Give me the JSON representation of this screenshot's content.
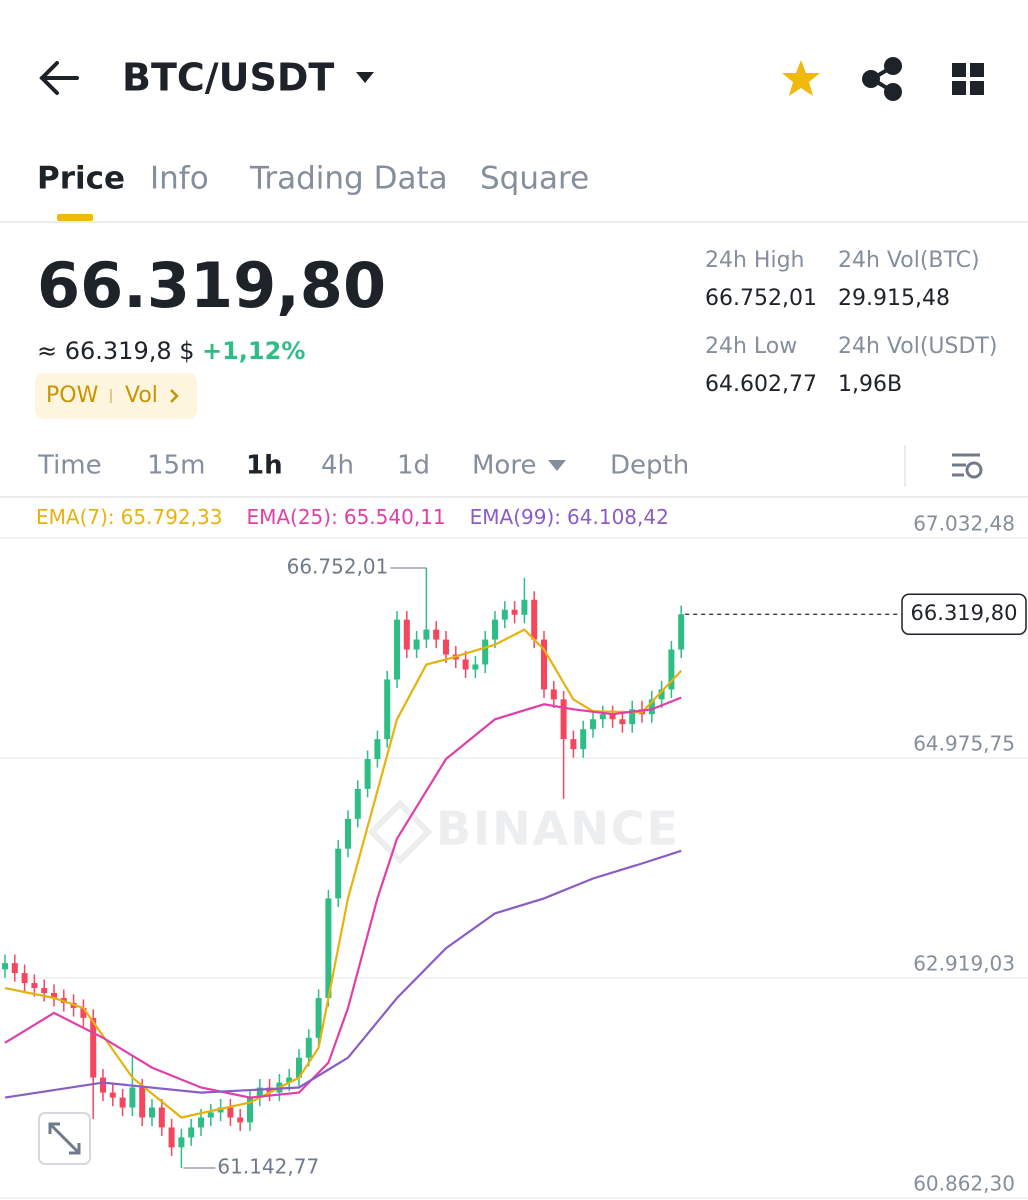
{
  "header": {
    "title": "BTC/USDT"
  },
  "tabs": [
    "Price",
    "Info",
    "Trading Data",
    "Square"
  ],
  "ticker": {
    "price": "66.319,80",
    "approx": "≈ 66.319,8 $",
    "change": "+1,12%",
    "badges": [
      "POW",
      "Vol"
    ],
    "stats": [
      {
        "label": "24h High",
        "value": "66.752,01"
      },
      {
        "label": "24h Vol(BTC)",
        "value": "29.915,48"
      },
      {
        "label": "24h Low",
        "value": "64.602,77"
      },
      {
        "label": "24h Vol(USDT)",
        "value": "1,96B"
      }
    ]
  },
  "intervals": [
    "Time",
    "15m",
    "1h",
    "4h",
    "1d",
    "More",
    "Depth"
  ],
  "chart_data": {
    "type": "candlestick",
    "up_color": "#2ebd85",
    "down_color": "#f6465d",
    "open": [
      63000,
      63058,
      62965,
      62872,
      62825,
      62779,
      62732,
      62686,
      62639,
      62546,
      61988,
      61848,
      61801,
      61708,
      61895,
      61615,
      61708,
      61522,
      61336,
      61429,
      61522,
      61615,
      61662,
      61708,
      61615,
      61569,
      61801,
      61895,
      61848,
      61941,
      61988,
      62174,
      62360,
      62732,
      63663,
      64128,
      64407,
      64687,
      64966,
      65152,
      65710,
      66269,
      65990,
      66083,
      66176,
      66083,
      65943,
      65897,
      65803,
      65850,
      66083,
      66269,
      66362,
      66315,
      66455,
      66083,
      65617,
      65524,
      65152,
      65059,
      65245,
      65338,
      65385,
      65338,
      65292,
      65431,
      65385,
      65524,
      65617,
      65990
    ],
    "high": [
      63138,
      63138,
      63045,
      62952,
      62905,
      62859,
      62812,
      62766,
      62719,
      62626,
      62068,
      61928,
      61881,
      62200,
      61975,
      61788,
      61788,
      61602,
      61509,
      61602,
      61695,
      61742,
      61788,
      61788,
      61695,
      61881,
      61975,
      61975,
      62021,
      62068,
      62254,
      62440,
      62812,
      63743,
      64208,
      64487,
      64767,
      65046,
      65232,
      65790,
      66349,
      66349,
      66163,
      66752.01,
      66256,
      66163,
      66023,
      65977,
      65930,
      66163,
      66349,
      66442,
      66442,
      66660,
      66535,
      66163,
      65697,
      65604,
      65232,
      65325,
      65418,
      65465,
      65465,
      65418,
      65511,
      65511,
      65604,
      65697,
      66070,
      66400
    ],
    "low": [
      62920,
      62885,
      62792,
      62745,
      62699,
      62652,
      62606,
      62559,
      62466,
      61600,
      61768,
      61721,
      61628,
      61628,
      61535,
      61535,
      61442,
      61256,
      61142.77,
      61349,
      61442,
      61535,
      61582,
      61535,
      61489,
      61489,
      61721,
      61768,
      61768,
      61861,
      61908,
      62094,
      62280,
      62652,
      63583,
      64048,
      64327,
      64607,
      64886,
      65072,
      65630,
      65910,
      65910,
      66003,
      66003,
      65863,
      65817,
      65723,
      65723,
      65770,
      66003,
      66189,
      66235,
      66235,
      66003,
      65537,
      65444,
      64594,
      64979,
      64979,
      65165,
      65258,
      65258,
      65212,
      65212,
      65305,
      65305,
      65444,
      65537,
      65910
    ],
    "close": [
      63058,
      62965,
      62872,
      62825,
      62779,
      62732,
      62686,
      62639,
      62546,
      61988,
      61848,
      61801,
      61708,
      61895,
      61615,
      61708,
      61522,
      61336,
      61429,
      61522,
      61615,
      61662,
      61708,
      61615,
      61569,
      61801,
      61895,
      61848,
      61941,
      61988,
      62174,
      62360,
      62732,
      63663,
      64128,
      64407,
      64687,
      64966,
      65152,
      65710,
      66269,
      65990,
      66083,
      66176,
      66083,
      65943,
      65897,
      65803,
      65850,
      66083,
      66269,
      66362,
      66315,
      66455,
      66083,
      65617,
      65524,
      65152,
      65059,
      65245,
      65338,
      65385,
      65338,
      65292,
      65431,
      65385,
      65524,
      65617,
      65990,
      66319.8
    ],
    "ylim": [
      60862.3,
      67032.48
    ],
    "yticks": [
      {
        "value": 67032.48,
        "label": "67.032,48"
      },
      {
        "value": 64975.75,
        "label": "64.975,75"
      },
      {
        "value": 62919.03,
        "label": "62.919,03"
      },
      {
        "value": 60862.3,
        "label": "60.862,30"
      }
    ],
    "grid": true,
    "series": [
      {
        "name": "EMA(7)",
        "color": "#e8b20e",
        "last": {
          "value": 65792.33,
          "label": "65.792,33"
        },
        "x": [
          0,
          5,
          8,
          13,
          18,
          25,
          30,
          32,
          35,
          40,
          43,
          45,
          50,
          53,
          55,
          58,
          60,
          65,
          69
        ],
        "values": [
          62825,
          62732,
          62639,
          61988,
          61615,
          61755,
          61988,
          62267,
          63663,
          65338,
          65850,
          65897,
          66036,
          66176,
          65990,
          65524,
          65413,
          65403,
          65792.33
        ]
      },
      {
        "name": "EMA(25)",
        "color": "#e03fa8",
        "last": {
          "value": 65540.11,
          "label": "65.540,11"
        },
        "x": [
          0,
          5,
          10,
          15,
          20,
          25,
          30,
          33,
          35,
          38,
          40,
          45,
          50,
          55,
          58,
          62,
          66,
          69
        ],
        "values": [
          62313,
          62593,
          62360,
          62081,
          61895,
          61801,
          61848,
          62127,
          62639,
          63663,
          64221,
          64966,
          65338,
          65478,
          65431,
          65385,
          65431,
          65540.11
        ]
      },
      {
        "name": "EMA(99)",
        "color": "#8a5cc6",
        "last": {
          "value": 64108.42,
          "label": "64.108,42"
        },
        "x": [
          0,
          10,
          20,
          30,
          35,
          40,
          45,
          50,
          55,
          60,
          65,
          69
        ],
        "values": [
          61801,
          61941,
          61848,
          61895,
          62174,
          62732,
          63198,
          63523,
          63663,
          63849,
          63989,
          64108.42
        ]
      }
    ],
    "annotations": [
      {
        "index": 43,
        "value": 66752.01,
        "label": "66.752,01"
      },
      {
        "index": 18,
        "value": 61142.77,
        "label": "61.142,77"
      }
    ],
    "last_price": {
      "value": 66319.8,
      "label": "66.319,80"
    },
    "watermark": "BINANCE"
  }
}
